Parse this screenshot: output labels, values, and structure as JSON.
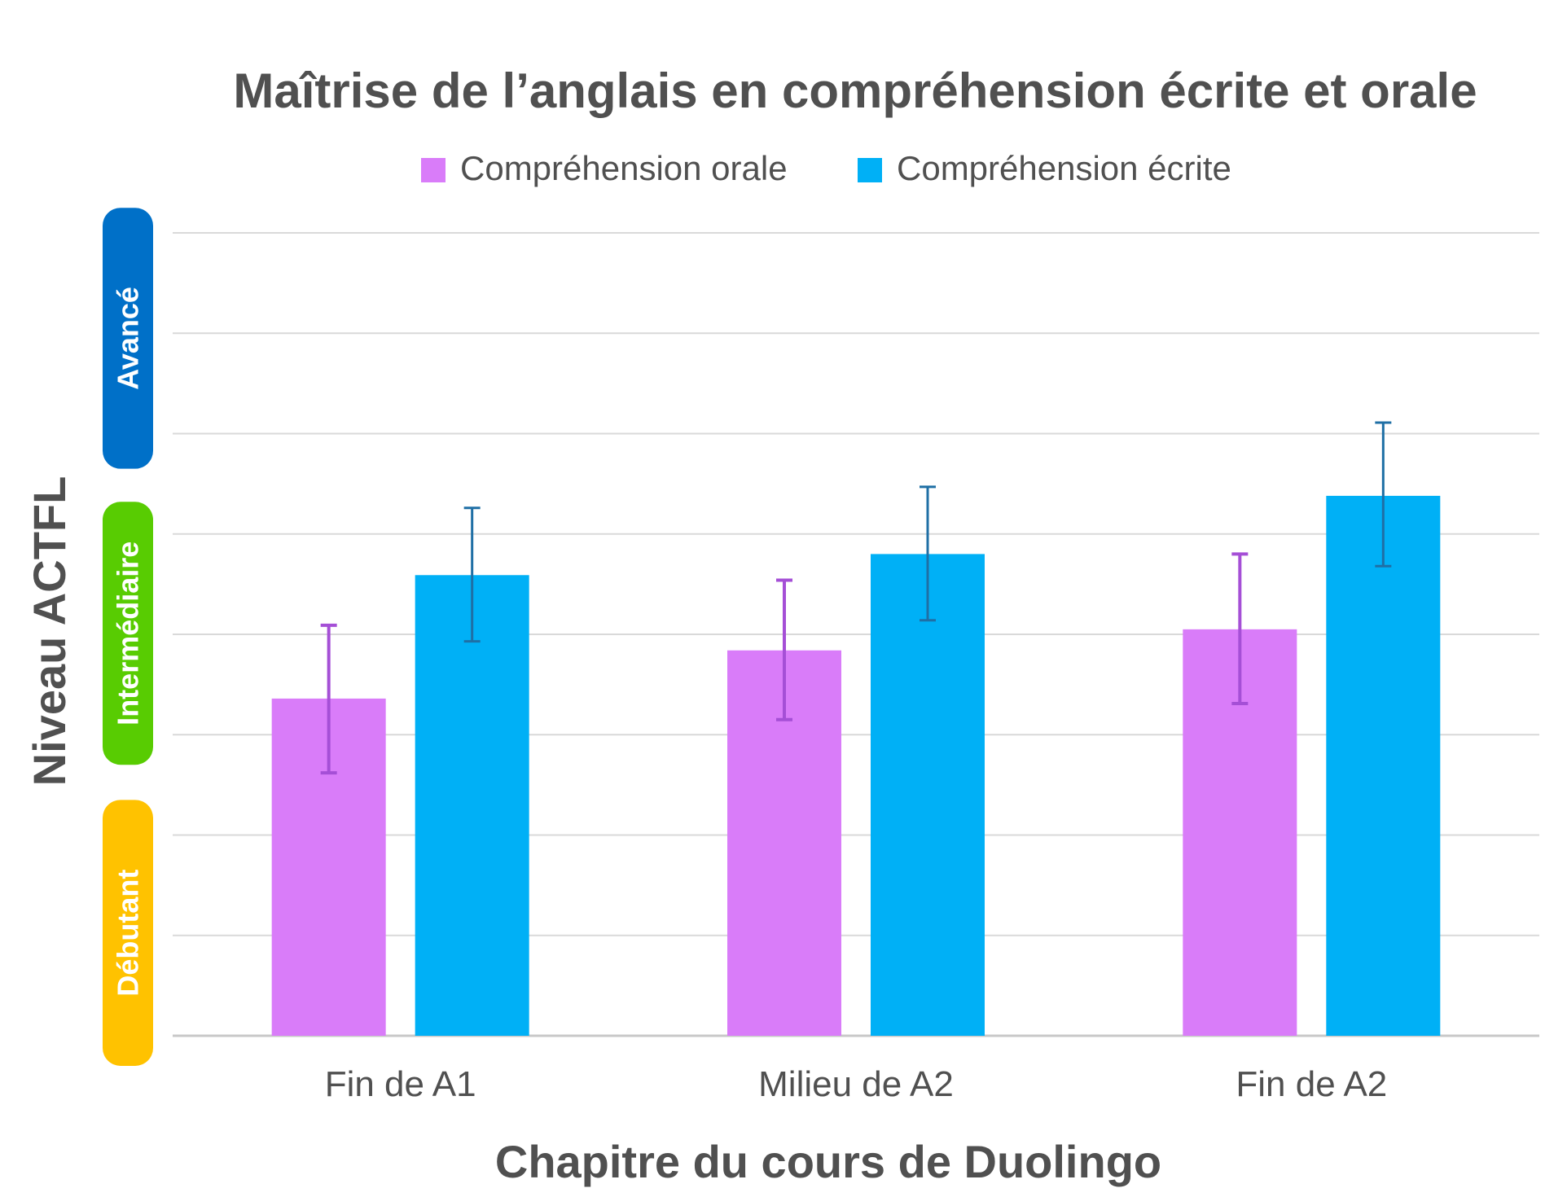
{
  "chart_data": {
    "type": "bar",
    "title": "Maîtrise de l’anglais en compréhension écrite et orale",
    "xlabel": "Chapitre du cours de Duolingo",
    "ylabel": "Niveau ACTFL",
    "categories": [
      "Fin de A1",
      "Milieu de A2",
      "Fin de A2"
    ],
    "ylim": [
      0,
      8
    ],
    "grid": true,
    "legend_position": "top-center",
    "series": [
      {
        "name": "Compréhension orale",
        "color": "#d97cf9",
        "error_color": "#a54fd6",
        "values": [
          3.36,
          3.84,
          4.05
        ],
        "error_low": [
          2.62,
          3.15,
          3.31
        ],
        "error_high": [
          4.09,
          4.54,
          4.8
        ]
      },
      {
        "name": "Compréhension écrite",
        "color": "#00b0f6",
        "error_color": "#1f6fa5",
        "values": [
          4.59,
          4.8,
          5.38
        ],
        "error_low": [
          3.93,
          4.14,
          4.68
        ],
        "error_high": [
          5.26,
          5.47,
          6.11
        ]
      }
    ],
    "level_bands": [
      {
        "label": "Avancé",
        "color": "#0070c8",
        "range": [
          5.65,
          8.25
        ]
      },
      {
        "label": "Intermédiaire",
        "color": "#58cc02",
        "range": [
          2.7,
          5.32
        ]
      },
      {
        "label": "Débutant",
        "color": "#ffc200",
        "range": [
          -0.3,
          2.35
        ]
      }
    ]
  }
}
